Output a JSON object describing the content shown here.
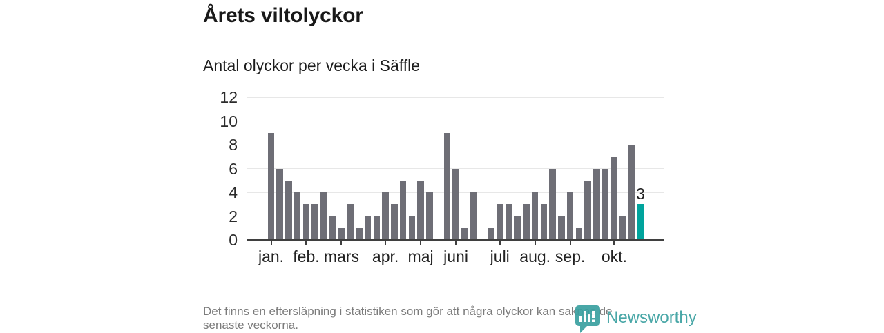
{
  "header": {
    "title": "Årets viltolyckor",
    "subtitle": "Antal olyckor per vecka i Säffle"
  },
  "chart_data": {
    "type": "bar",
    "title": "Årets viltolyckor",
    "subtitle": "Antal olyckor per vecka i Säffle",
    "x_unit": "vecka",
    "values": [
      9,
      6,
      5,
      4,
      3,
      3,
      4,
      2,
      1,
      3,
      1,
      2,
      2,
      4,
      3,
      5,
      2,
      5,
      4,
      0,
      9,
      6,
      1,
      4,
      0,
      1,
      3,
      3,
      2,
      3,
      4,
      3,
      6,
      2,
      4,
      1,
      5,
      6,
      6,
      7,
      2,
      8,
      3
    ],
    "yticks": [
      0,
      2,
      4,
      6,
      8,
      10,
      12
    ],
    "ylim": [
      0,
      12
    ],
    "grid": true,
    "legend": "none",
    "month_ticks": [
      {
        "slot": 0,
        "label": "jan."
      },
      {
        "slot": 4,
        "label": "feb."
      },
      {
        "slot": 8,
        "label": "mars"
      },
      {
        "slot": 13,
        "label": "apr."
      },
      {
        "slot": 17,
        "label": "maj"
      },
      {
        "slot": 21,
        "label": "juni"
      },
      {
        "slot": 26,
        "label": "juli"
      },
      {
        "slot": 30,
        "label": "aug."
      },
      {
        "slot": 34,
        "label": "sep."
      },
      {
        "slot": 39,
        "label": "okt."
      }
    ],
    "bar_color": "#6e6e76",
    "highlight": {
      "index": 42,
      "value": 3,
      "label": "3",
      "color": "#00a49d"
    },
    "gridline_color": "#e7e7e7",
    "axis_color": "#3f3f3f"
  },
  "footer": {
    "line1": "Det finns en eftersläpning i statistiken som gör att några olyckor kan saknas de",
    "line2": "senaste veckorna."
  },
  "logo": {
    "wordmark": "Newsworthy",
    "color": "#3aa0a0"
  }
}
